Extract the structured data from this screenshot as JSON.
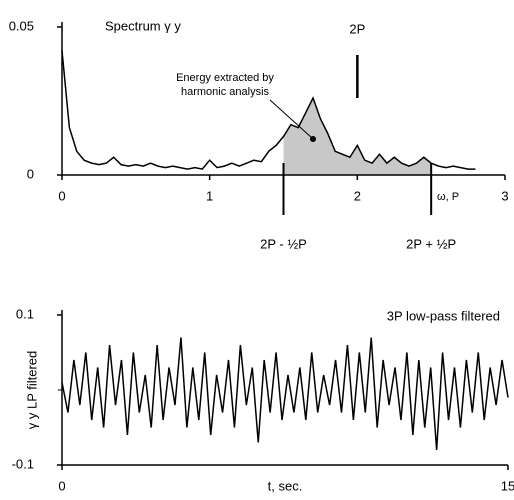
{
  "chart_data": [
    {
      "type": "line",
      "title": "Spectrum γ y",
      "xlabel": "ω, P",
      "annotation": "Energy extracted by harmonic analysis",
      "x": [
        0,
        0.05,
        0.1,
        0.15,
        0.2,
        0.25,
        0.3,
        0.35,
        0.4,
        0.45,
        0.5,
        0.55,
        0.6,
        0.65,
        0.7,
        0.75,
        0.8,
        0.85,
        0.9,
        0.95,
        1,
        1.05,
        1.1,
        1.15,
        1.2,
        1.25,
        1.3,
        1.35,
        1.4,
        1.45,
        1.5,
        1.55,
        1.6,
        1.65,
        1.7,
        1.75,
        1.8,
        1.85,
        1.9,
        1.95,
        2,
        2.05,
        2.1,
        2.15,
        2.2,
        2.25,
        2.3,
        2.35,
        2.4,
        2.45,
        2.5,
        2.55,
        2.6,
        2.65,
        2.7,
        2.75,
        2.8
      ],
      "series": [
        {
          "color": "#000000",
          "values": [
            0.042,
            0.016,
            0.008,
            0.005,
            0.004,
            0.0035,
            0.004,
            0.006,
            0.0035,
            0.003,
            0.0035,
            0.003,
            0.004,
            0.003,
            0.0025,
            0.003,
            0.0025,
            0.002,
            0.0025,
            0.002,
            0.005,
            0.0025,
            0.003,
            0.004,
            0.003,
            0.004,
            0.005,
            0.0045,
            0.008,
            0.01,
            0.013,
            0.017,
            0.016,
            0.021,
            0.026,
            0.019,
            0.014,
            0.008,
            0.007,
            0.006,
            0.01,
            0.005,
            0.004,
            0.007,
            0.004,
            0.006,
            0.004,
            0.003,
            0.004,
            0.006,
            0.004,
            0.003,
            0.0025,
            0.003,
            0.0025,
            0.002,
            0.002
          ]
        }
      ],
      "shade_range": [
        1.5,
        2.5
      ],
      "shade_color": "#c8c8c8",
      "markers": [
        {
          "x": 2,
          "label": "2P"
        },
        {
          "x": 1.5,
          "label": "2P - ½P"
        },
        {
          "x": 2.5,
          "label": "2P + ½P"
        }
      ],
      "xlim": [
        0,
        3
      ],
      "xticks": [
        0,
        1,
        2,
        3
      ],
      "ylim": [
        0,
        0.05
      ],
      "yticks": [
        0,
        0.05
      ]
    },
    {
      "type": "line",
      "title": "3P low-pass filtered",
      "xlabel": "t, sec.",
      "ylabel": "γ y LP filtered",
      "x": [
        0,
        0.2,
        0.4,
        0.6,
        0.8,
        1,
        1.2,
        1.4,
        1.6,
        1.8,
        2,
        2.2,
        2.4,
        2.6,
        2.8,
        3,
        3.2,
        3.4,
        3.6,
        3.8,
        4,
        4.2,
        4.4,
        4.6,
        4.8,
        5,
        5.2,
        5.4,
        5.6,
        5.8,
        6,
        6.2,
        6.4,
        6.6,
        6.8,
        7,
        7.2,
        7.4,
        7.6,
        7.8,
        8,
        8.2,
        8.4,
        8.6,
        8.8,
        9,
        9.2,
        9.4,
        9.6,
        9.8,
        10,
        10.2,
        10.4,
        10.6,
        10.8,
        11,
        11.2,
        11.4,
        11.6,
        11.8,
        12,
        12.2,
        12.4,
        12.6,
        12.8,
        13,
        13.2,
        13.4,
        13.6,
        13.8,
        14,
        14.2,
        14.4,
        14.6,
        14.8,
        15
      ],
      "series": [
        {
          "color": "#000000",
          "values": [
            0.01,
            -0.03,
            0.04,
            -0.02,
            0.05,
            -0.04,
            0.03,
            -0.05,
            0.06,
            -0.02,
            0.04,
            -0.06,
            0.05,
            -0.03,
            0.02,
            -0.05,
            0.06,
            -0.04,
            0.03,
            -0.02,
            0.07,
            -0.05,
            0.03,
            -0.04,
            0.05,
            -0.06,
            0.02,
            -0.03,
            0.04,
            -0.05,
            0.06,
            -0.02,
            0.03,
            -0.07,
            0.04,
            -0.03,
            0.05,
            -0.04,
            0.02,
            -0.03,
            0.03,
            -0.04,
            0.05,
            -0.03,
            0.02,
            -0.02,
            0.04,
            -0.03,
            0.06,
            -0.04,
            0.05,
            -0.03,
            0.07,
            -0.05,
            0.04,
            -0.02,
            0.03,
            -0.04,
            0.05,
            -0.06,
            0.04,
            -0.05,
            0.03,
            -0.08,
            0.05,
            -0.04,
            0.03,
            -0.05,
            0.04,
            -0.03,
            0.05,
            -0.04,
            0.03,
            -0.02,
            0.04,
            -0.01
          ]
        }
      ],
      "xlim": [
        0,
        15
      ],
      "xticks": [
        0,
        15
      ],
      "ylim": [
        -0.1,
        0.1
      ],
      "yticks": [
        -0.1,
        0.1
      ]
    }
  ]
}
